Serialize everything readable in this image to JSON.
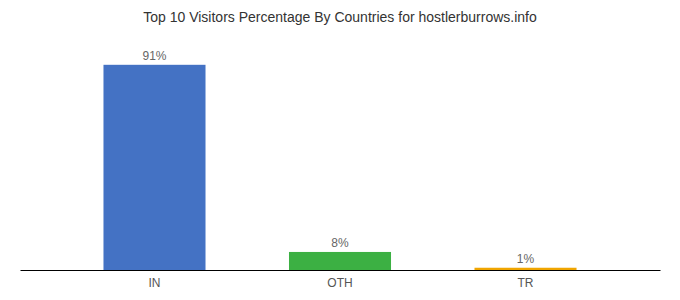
{
  "chart_data": {
    "type": "bar",
    "title": "Top 10 Visitors Percentage By Countries for hostlerburrows.info",
    "categories": [
      "IN",
      "OTH",
      "TR"
    ],
    "values": [
      91,
      8,
      1
    ],
    "value_labels": [
      "91%",
      "8%",
      "1%"
    ],
    "colors": [
      "#4472c4",
      "#3cb043",
      "#f0a500"
    ],
    "ylim": [
      0,
      102
    ],
    "data_labels": true,
    "tick_labels": "x",
    "grid": false
  }
}
